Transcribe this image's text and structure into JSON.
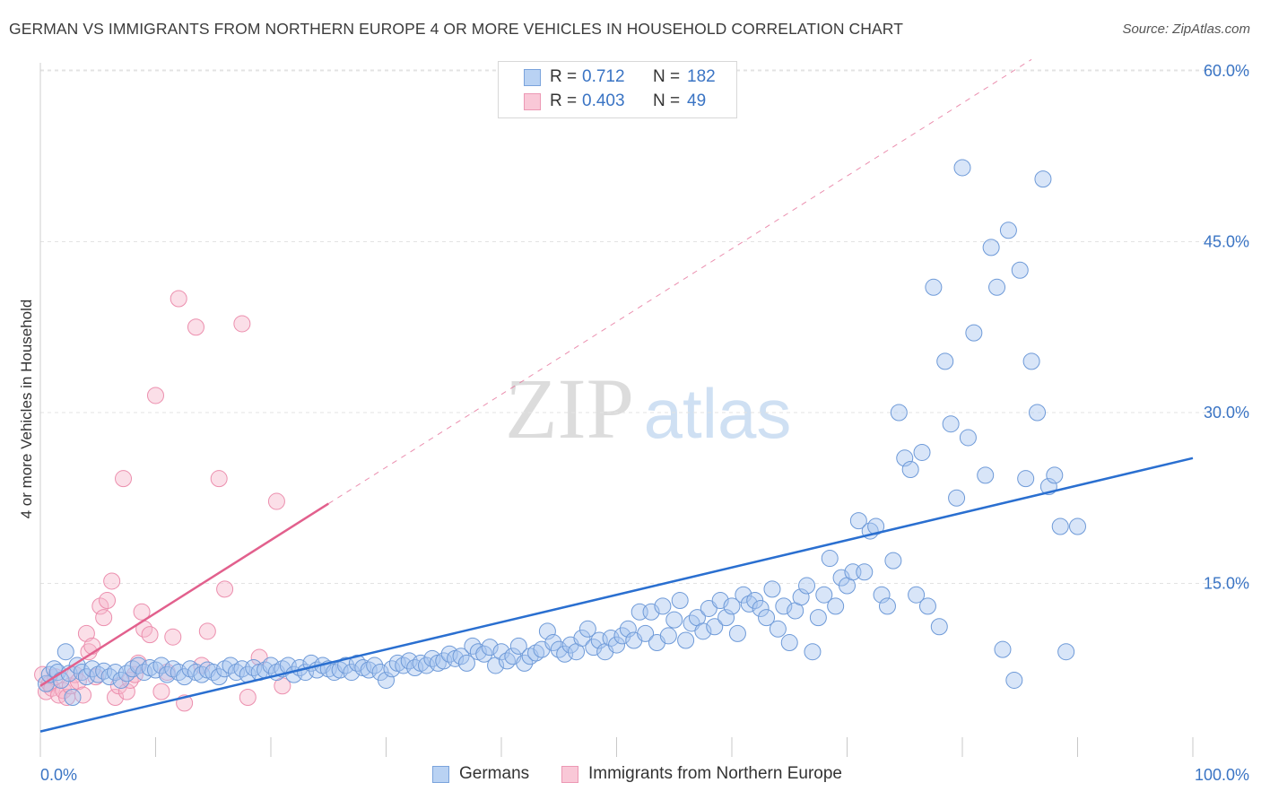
{
  "title": "GERMAN VS IMMIGRANTS FROM NORTHERN EUROPE 4 OR MORE VEHICLES IN HOUSEHOLD CORRELATION CHART",
  "source": "Source: ZipAtlas.com",
  "watermark": {
    "zip": "ZIP",
    "atlas": "atlas"
  },
  "legend_top": [
    {
      "r_label": "R =",
      "r_value": "0.712",
      "n_label": "N =",
      "n_value": "182"
    },
    {
      "r_label": "R =",
      "r_value": "0.403",
      "n_label": "N =",
      "n_value": "49"
    }
  ],
  "legend_bottom": [
    "Germans",
    "Immigrants from Northern Europe"
  ],
  "colors": {
    "blue_fill": "#a9c6ef",
    "blue_stroke": "#6e9ad8",
    "blue_line": "#2a6fd0",
    "pink_fill": "#f6b8cb",
    "pink_stroke": "#ec8fae",
    "pink_line": "#e2608d",
    "tick_text": "#3a74c4",
    "grid": "#e3e3e3"
  },
  "chart_data": {
    "type": "scatter",
    "title": "GERMAN VS IMMIGRANTS FROM NORTHERN EUROPE 4 OR MORE VEHICLES IN HOUSEHOLD CORRELATION CHART",
    "xlabel": "",
    "ylabel": "4 or more Vehicles in Household",
    "xlim": [
      0,
      100
    ],
    "ylim": [
      0,
      64
    ],
    "x_tick_labels": [
      "0.0%",
      "100.0%"
    ],
    "y_ticks": [
      15,
      30,
      45,
      60
    ],
    "y_tick_labels": [
      "15.0%",
      "30.0%",
      "45.0%",
      "60.0%"
    ],
    "grid": true,
    "legend_position": "top-center",
    "series": [
      {
        "name": "Germans",
        "color": "#a9c6ef",
        "trend": {
          "x": [
            0,
            100
          ],
          "y": [
            2.0,
            26.0
          ]
        },
        "points": [
          [
            0.5,
            6.2
          ],
          [
            0.8,
            7.0
          ],
          [
            1.2,
            7.5
          ],
          [
            1.5,
            7.2
          ],
          [
            1.8,
            6.5
          ],
          [
            2.2,
            9.0
          ],
          [
            2.5,
            7.1
          ],
          [
            2.8,
            5.0
          ],
          [
            3.2,
            7.8
          ],
          [
            3.6,
            7.2
          ],
          [
            4.0,
            6.8
          ],
          [
            4.5,
            7.5
          ],
          [
            5.0,
            7.0
          ],
          [
            5.5,
            7.3
          ],
          [
            6.0,
            6.8
          ],
          [
            6.5,
            7.2
          ],
          [
            7.0,
            6.5
          ],
          [
            7.5,
            7.1
          ],
          [
            8.0,
            7.5
          ],
          [
            8.5,
            7.8
          ],
          [
            9.0,
            7.2
          ],
          [
            9.5,
            7.6
          ],
          [
            10.0,
            7.4
          ],
          [
            10.5,
            7.8
          ],
          [
            11.0,
            7.0
          ],
          [
            11.5,
            7.5
          ],
          [
            12.0,
            7.2
          ],
          [
            12.5,
            6.8
          ],
          [
            13.0,
            7.5
          ],
          [
            13.5,
            7.2
          ],
          [
            14.0,
            7.0
          ],
          [
            14.5,
            7.4
          ],
          [
            15.0,
            7.2
          ],
          [
            15.5,
            6.8
          ],
          [
            16.0,
            7.5
          ],
          [
            16.5,
            7.8
          ],
          [
            17.0,
            7.2
          ],
          [
            17.5,
            7.5
          ],
          [
            18.0,
            7.0
          ],
          [
            18.5,
            7.6
          ],
          [
            19.0,
            7.2
          ],
          [
            19.5,
            7.4
          ],
          [
            20.0,
            7.8
          ],
          [
            20.5,
            7.2
          ],
          [
            21.0,
            7.5
          ],
          [
            21.5,
            7.8
          ],
          [
            22.0,
            7.0
          ],
          [
            22.5,
            7.6
          ],
          [
            23.0,
            7.2
          ],
          [
            23.5,
            8.0
          ],
          [
            24.0,
            7.4
          ],
          [
            24.5,
            7.8
          ],
          [
            25.0,
            7.5
          ],
          [
            25.5,
            7.2
          ],
          [
            26.0,
            7.4
          ],
          [
            26.5,
            7.8
          ],
          [
            27.0,
            7.2
          ],
          [
            27.5,
            8.0
          ],
          [
            28.0,
            7.6
          ],
          [
            28.5,
            7.4
          ],
          [
            29.0,
            7.8
          ],
          [
            29.5,
            7.2
          ],
          [
            30.0,
            6.5
          ],
          [
            30.5,
            7.5
          ],
          [
            31.0,
            8.0
          ],
          [
            31.5,
            7.8
          ],
          [
            32.0,
            8.2
          ],
          [
            32.5,
            7.6
          ],
          [
            33.0,
            8.0
          ],
          [
            33.5,
            7.8
          ],
          [
            34.0,
            8.4
          ],
          [
            34.5,
            8.0
          ],
          [
            35.0,
            8.2
          ],
          [
            35.5,
            8.8
          ],
          [
            36.0,
            8.4
          ],
          [
            36.5,
            8.6
          ],
          [
            37.0,
            8.0
          ],
          [
            37.5,
            9.5
          ],
          [
            38.0,
            9.0
          ],
          [
            38.5,
            8.8
          ],
          [
            39.0,
            9.4
          ],
          [
            39.5,
            7.8
          ],
          [
            40.0,
            9.0
          ],
          [
            40.5,
            8.2
          ],
          [
            41.0,
            8.6
          ],
          [
            41.5,
            9.5
          ],
          [
            42.0,
            8.0
          ],
          [
            42.5,
            8.6
          ],
          [
            43.0,
            8.9
          ],
          [
            43.5,
            9.2
          ],
          [
            44.0,
            10.8
          ],
          [
            44.5,
            9.8
          ],
          [
            45.0,
            9.2
          ],
          [
            45.5,
            8.8
          ],
          [
            46.0,
            9.6
          ],
          [
            46.5,
            9.0
          ],
          [
            47.0,
            10.2
          ],
          [
            47.5,
            11.0
          ],
          [
            48.0,
            9.4
          ],
          [
            48.5,
            10.0
          ],
          [
            49.0,
            9.0
          ],
          [
            49.5,
            10.2
          ],
          [
            50.0,
            9.6
          ],
          [
            50.5,
            10.4
          ],
          [
            51.0,
            11.0
          ],
          [
            51.5,
            10.0
          ],
          [
            52.0,
            12.5
          ],
          [
            52.5,
            10.6
          ],
          [
            53.0,
            12.5
          ],
          [
            53.5,
            9.8
          ],
          [
            54.0,
            13.0
          ],
          [
            54.5,
            10.4
          ],
          [
            55.0,
            11.8
          ],
          [
            55.5,
            13.5
          ],
          [
            56.0,
            10.0
          ],
          [
            56.5,
            11.5
          ],
          [
            57.0,
            12.0
          ],
          [
            57.5,
            10.8
          ],
          [
            58.0,
            12.8
          ],
          [
            58.5,
            11.2
          ],
          [
            59.0,
            13.5
          ],
          [
            59.5,
            12.0
          ],
          [
            60.0,
            13.0
          ],
          [
            60.5,
            10.6
          ],
          [
            61.0,
            14.0
          ],
          [
            61.5,
            13.2
          ],
          [
            62.0,
            13.5
          ],
          [
            62.5,
            12.8
          ],
          [
            63.0,
            12.0
          ],
          [
            63.5,
            14.5
          ],
          [
            64.0,
            11.0
          ],
          [
            64.5,
            13.0
          ],
          [
            65.0,
            9.8
          ],
          [
            65.5,
            12.6
          ],
          [
            66.0,
            13.8
          ],
          [
            66.5,
            14.8
          ],
          [
            67.0,
            9.0
          ],
          [
            67.5,
            12.0
          ],
          [
            68.0,
            14.0
          ],
          [
            68.5,
            17.2
          ],
          [
            69.0,
            13.0
          ],
          [
            69.5,
            15.5
          ],
          [
            70.0,
            14.8
          ],
          [
            70.5,
            16.0
          ],
          [
            71.0,
            20.5
          ],
          [
            71.5,
            16.0
          ],
          [
            72.0,
            19.6
          ],
          [
            72.5,
            20.0
          ],
          [
            73.0,
            14.0
          ],
          [
            73.5,
            13.0
          ],
          [
            74.0,
            17.0
          ],
          [
            74.5,
            30.0
          ],
          [
            75.0,
            26.0
          ],
          [
            75.5,
            25.0
          ],
          [
            76.0,
            14.0
          ],
          [
            76.5,
            26.5
          ],
          [
            77.0,
            13.0
          ],
          [
            77.5,
            41.0
          ],
          [
            78.0,
            11.2
          ],
          [
            78.5,
            34.5
          ],
          [
            79.0,
            29.0
          ],
          [
            79.5,
            22.5
          ],
          [
            80.0,
            51.5
          ],
          [
            80.5,
            27.8
          ],
          [
            81.0,
            37.0
          ],
          [
            82.0,
            24.5
          ],
          [
            82.5,
            44.5
          ],
          [
            83.0,
            41.0
          ],
          [
            83.5,
            9.2
          ],
          [
            84.0,
            46.0
          ],
          [
            84.5,
            6.5
          ],
          [
            85.0,
            42.5
          ],
          [
            85.5,
            24.2
          ],
          [
            86.0,
            34.5
          ],
          [
            86.5,
            30.0
          ],
          [
            87.0,
            50.5
          ],
          [
            87.5,
            23.5
          ],
          [
            88.0,
            24.5
          ],
          [
            88.5,
            20.0
          ],
          [
            89.0,
            9.0
          ],
          [
            90.0,
            20.0
          ]
        ]
      },
      {
        "name": "Immigrants from Northern Europe",
        "color": "#f6b8cb",
        "trend": {
          "x": [
            0,
            25
          ],
          "y": [
            6.0,
            22.0
          ]
        },
        "trend_dashed": {
          "x": [
            25,
            86
          ],
          "y": [
            22.0,
            61.0
          ]
        },
        "points": [
          [
            0.2,
            7.0
          ],
          [
            0.5,
            5.5
          ],
          [
            0.8,
            6.2
          ],
          [
            1.0,
            5.8
          ],
          [
            1.3,
            6.8
          ],
          [
            1.6,
            5.2
          ],
          [
            2.0,
            5.6
          ],
          [
            2.3,
            5.0
          ],
          [
            2.6,
            6.0
          ],
          [
            3.0,
            7.0
          ],
          [
            3.3,
            6.4
          ],
          [
            3.7,
            5.2
          ],
          [
            4.0,
            10.6
          ],
          [
            4.2,
            9.0
          ],
          [
            4.5,
            9.5
          ],
          [
            4.8,
            6.8
          ],
          [
            5.2,
            13.0
          ],
          [
            5.5,
            12.0
          ],
          [
            5.8,
            13.5
          ],
          [
            6.2,
            15.2
          ],
          [
            6.5,
            5.0
          ],
          [
            6.8,
            6.0
          ],
          [
            7.2,
            24.2
          ],
          [
            7.5,
            5.5
          ],
          [
            7.8,
            6.5
          ],
          [
            8.2,
            7.0
          ],
          [
            8.5,
            8.0
          ],
          [
            8.8,
            12.5
          ],
          [
            9.0,
            11.0
          ],
          [
            9.5,
            10.5
          ],
          [
            10.0,
            31.5
          ],
          [
            10.5,
            5.5
          ],
          [
            11.0,
            7.2
          ],
          [
            11.5,
            10.3
          ],
          [
            12.0,
            40.0
          ],
          [
            12.5,
            4.5
          ],
          [
            13.5,
            37.5
          ],
          [
            14.0,
            7.8
          ],
          [
            14.5,
            10.8
          ],
          [
            15.5,
            24.2
          ],
          [
            16.0,
            14.5
          ],
          [
            17.5,
            37.8
          ],
          [
            18.0,
            5.0
          ],
          [
            19.0,
            8.5
          ],
          [
            20.5,
            22.2
          ],
          [
            21.0,
            6.0
          ]
        ]
      }
    ]
  }
}
